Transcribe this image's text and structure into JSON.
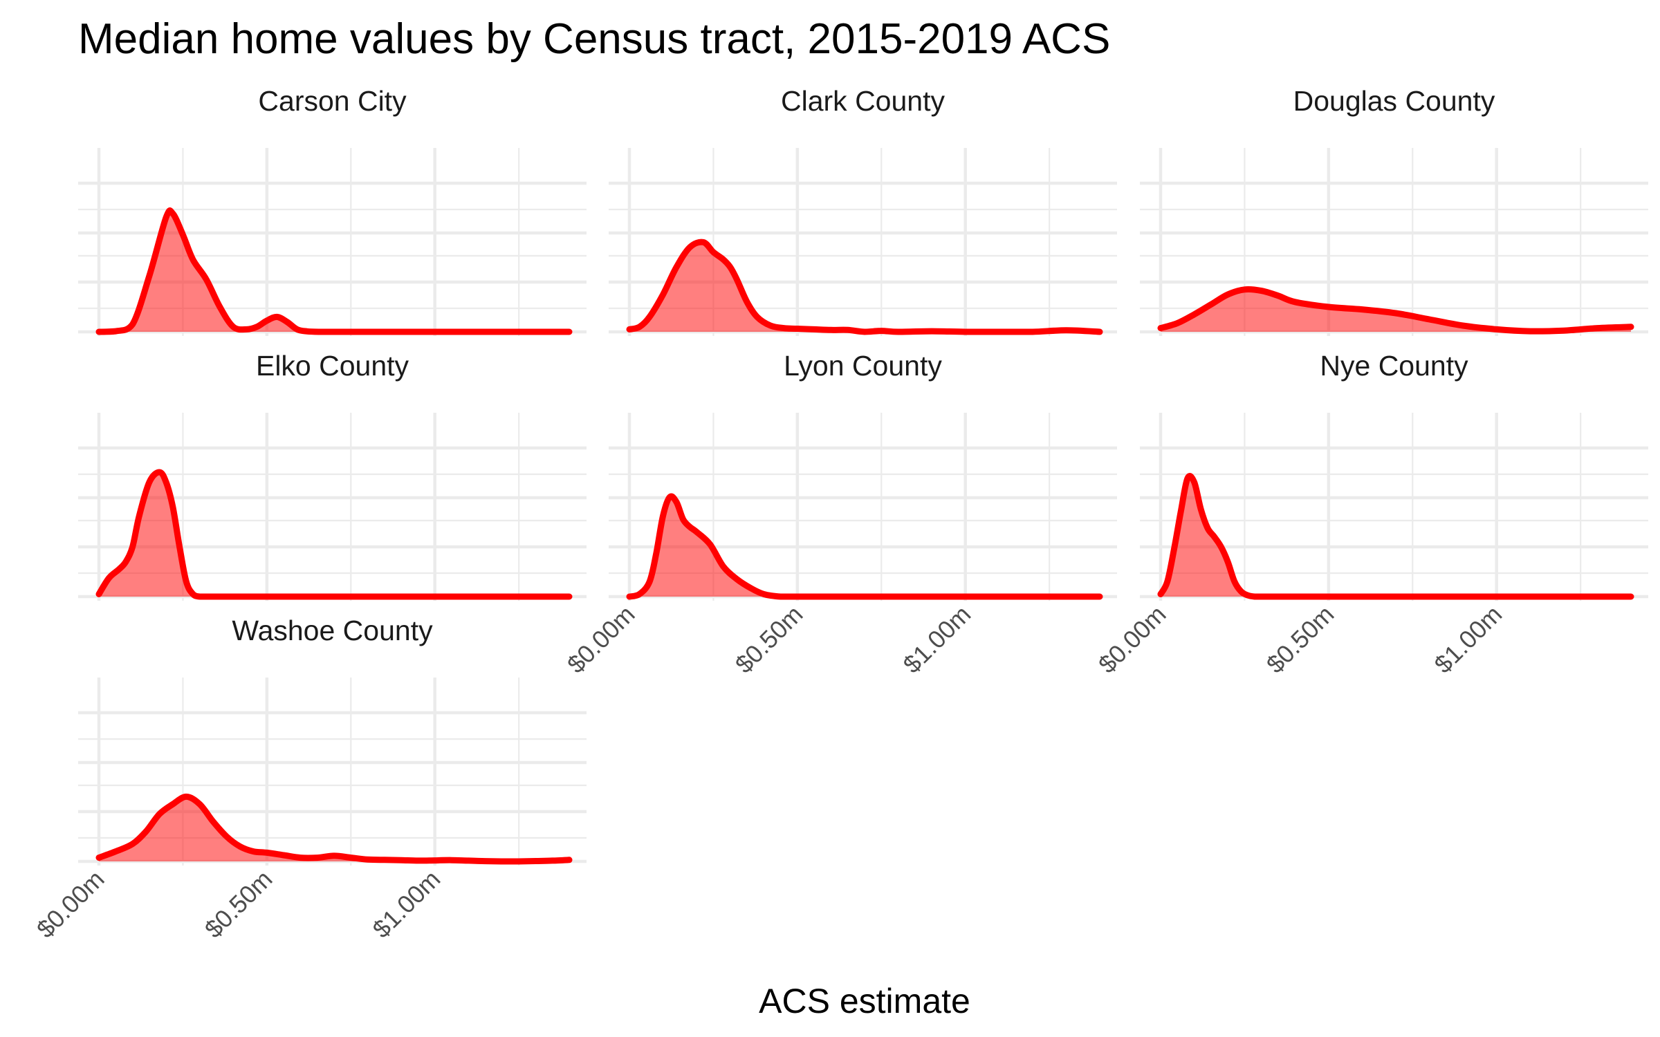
{
  "chart_data": {
    "type": "density",
    "title": "Median home values by Census tract, 2015-2019 ACS",
    "xlabel": "ACS estimate",
    "ylabel": "",
    "xlim": [
      0,
      1.4
    ],
    "ylim": [
      0,
      1
    ],
    "x_ticks": [
      0,
      0.5,
      1.0
    ],
    "x_tick_labels": [
      "$0.00m",
      "$0.50m",
      "$1.00m"
    ],
    "fill_color": "#ff0000",
    "fill_opacity": 0.5,
    "line_color": "#ff0000",
    "grid": true,
    "facets": [
      {
        "name": "Carson City",
        "x": [
          0,
          0.05,
          0.1,
          0.15,
          0.2,
          0.22,
          0.25,
          0.28,
          0.32,
          0.36,
          0.4,
          0.44,
          0.47,
          0.5,
          0.53,
          0.56,
          0.59,
          0.62,
          0.66,
          0.7,
          0.8,
          0.9,
          1.0,
          1.1,
          1.2,
          1.3,
          1.4
        ],
        "y": [
          0.0,
          0.005,
          0.06,
          0.45,
          0.92,
          0.95,
          0.78,
          0.58,
          0.42,
          0.2,
          0.04,
          0.02,
          0.04,
          0.09,
          0.12,
          0.08,
          0.02,
          0.004,
          0.0,
          0.0,
          0.0,
          0.0,
          0.0,
          0.0,
          0.0,
          0.0,
          0.0
        ]
      },
      {
        "name": "Clark County",
        "x": [
          0,
          0.03,
          0.06,
          0.1,
          0.14,
          0.18,
          0.22,
          0.25,
          0.28,
          0.3,
          0.32,
          0.35,
          0.38,
          0.42,
          0.46,
          0.5,
          0.55,
          0.6,
          0.65,
          0.7,
          0.75,
          0.8,
          0.9,
          1.0,
          1.1,
          1.2,
          1.3,
          1.4
        ],
        "y": [
          0.02,
          0.04,
          0.12,
          0.3,
          0.52,
          0.68,
          0.72,
          0.64,
          0.58,
          0.52,
          0.42,
          0.24,
          0.12,
          0.05,
          0.03,
          0.025,
          0.02,
          0.015,
          0.015,
          0.0,
          0.008,
          0.0,
          0.005,
          0.0,
          0.0,
          0.0,
          0.012,
          0.0
        ]
      },
      {
        "name": "Douglas County",
        "x": [
          0,
          0.05,
          0.1,
          0.15,
          0.2,
          0.25,
          0.3,
          0.35,
          0.4,
          0.5,
          0.6,
          0.7,
          0.8,
          0.9,
          1.0,
          1.1,
          1.2,
          1.3,
          1.4
        ],
        "y": [
          0.03,
          0.07,
          0.14,
          0.22,
          0.3,
          0.34,
          0.33,
          0.29,
          0.24,
          0.2,
          0.18,
          0.15,
          0.1,
          0.05,
          0.02,
          0.005,
          0.01,
          0.03,
          0.04
        ]
      },
      {
        "name": "Elko County",
        "x": [
          0,
          0.03,
          0.06,
          0.08,
          0.1,
          0.12,
          0.15,
          0.18,
          0.2,
          0.22,
          0.24,
          0.26,
          0.28,
          0.3,
          0.32,
          0.35,
          0.4,
          0.5,
          0.6,
          0.8,
          1.0,
          1.2,
          1.4
        ],
        "y": [
          0.02,
          0.15,
          0.22,
          0.28,
          0.4,
          0.65,
          0.92,
          1.0,
          0.92,
          0.72,
          0.4,
          0.12,
          0.02,
          0.0,
          0.0,
          0.0,
          0.0,
          0.0,
          0.0,
          0.0,
          0.0,
          0.0,
          0.0
        ]
      },
      {
        "name": "Lyon County",
        "x": [
          0,
          0.03,
          0.06,
          0.08,
          0.1,
          0.12,
          0.14,
          0.16,
          0.18,
          0.2,
          0.24,
          0.28,
          0.32,
          0.36,
          0.4,
          0.45,
          0.5,
          0.6,
          0.8,
          1.0,
          1.2,
          1.4
        ],
        "y": [
          0.0,
          0.02,
          0.12,
          0.35,
          0.65,
          0.8,
          0.76,
          0.62,
          0.56,
          0.52,
          0.42,
          0.24,
          0.14,
          0.07,
          0.02,
          0.0,
          0.0,
          0.0,
          0.0,
          0.0,
          0.0,
          0.0
        ]
      },
      {
        "name": "Nye County",
        "x": [
          0,
          0.02,
          0.04,
          0.06,
          0.08,
          0.1,
          0.12,
          0.14,
          0.16,
          0.18,
          0.2,
          0.22,
          0.24,
          0.26,
          0.28,
          0.3,
          0.35,
          0.4,
          0.6,
          0.8,
          1.0,
          1.2,
          1.4
        ],
        "y": [
          0.02,
          0.12,
          0.38,
          0.68,
          0.95,
          0.92,
          0.7,
          0.55,
          0.48,
          0.4,
          0.28,
          0.12,
          0.04,
          0.01,
          0.0,
          0.0,
          0.0,
          0.0,
          0.0,
          0.0,
          0.0,
          0.0,
          0.0
        ]
      },
      {
        "name": "Washoe County",
        "x": [
          0,
          0.05,
          0.1,
          0.14,
          0.18,
          0.22,
          0.26,
          0.3,
          0.34,
          0.38,
          0.42,
          0.46,
          0.5,
          0.55,
          0.6,
          0.65,
          0.7,
          0.75,
          0.8,
          0.85,
          0.9,
          0.95,
          1.0,
          1.05,
          1.1,
          1.15,
          1.2,
          1.25,
          1.3,
          1.35,
          1.4
        ],
        "y": [
          0.03,
          0.08,
          0.14,
          0.24,
          0.38,
          0.46,
          0.52,
          0.46,
          0.32,
          0.2,
          0.12,
          0.08,
          0.07,
          0.05,
          0.03,
          0.03,
          0.045,
          0.03,
          0.015,
          0.012,
          0.01,
          0.006,
          0.008,
          0.01,
          0.006,
          0.002,
          0.0,
          0.0,
          0.003,
          0.006,
          0.012
        ]
      }
    ]
  }
}
